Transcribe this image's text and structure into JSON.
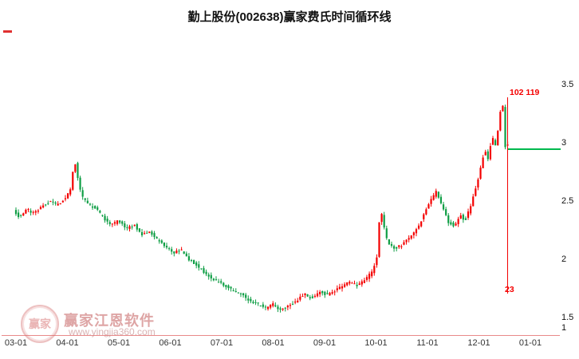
{
  "title": "勤上股份(002638)赢家费氏时间循环线",
  "watermark": {
    "brand": "赢家江恩软件",
    "url": "www.yingjia360.com",
    "logo_text": "赢家"
  },
  "annotations": {
    "top_label": "102 119",
    "bottom_label": "23",
    "current_price_line_color": "#00b94e",
    "cycle_line_color": "#f40000"
  },
  "chart_data": {
    "type": "candlestick",
    "title": "勤上股份(002638)赢家费氏时间循环线",
    "xlabel": "",
    "ylabel": "",
    "x_ticks": [
      "03-01",
      "04-01",
      "05-01",
      "06-01",
      "07-01",
      "08-01",
      "09-01",
      "10-01",
      "11-01",
      "12-01",
      "01-01"
    ],
    "y_ticks": [
      3.5,
      3,
      2.5,
      2,
      1.5,
      1
    ],
    "ylim": [
      1,
      3.5
    ],
    "grid": false,
    "legend": "none",
    "y_axis_side": "right",
    "up_color": "#f40000",
    "down_color": "#0f9e45",
    "last_price": 2.97,
    "candle_count": 200,
    "price_path": [
      [
        0.0,
        2.42
      ],
      [
        0.012,
        2.37
      ],
      [
        0.025,
        2.44
      ],
      [
        0.04,
        2.4
      ],
      [
        0.055,
        2.46
      ],
      [
        0.07,
        2.5
      ],
      [
        0.085,
        2.47
      ],
      [
        0.1,
        2.53
      ],
      [
        0.112,
        2.62
      ],
      [
        0.118,
        2.88
      ],
      [
        0.124,
        2.72
      ],
      [
        0.132,
        2.55
      ],
      [
        0.145,
        2.48
      ],
      [
        0.16,
        2.44
      ],
      [
        0.175,
        2.36
      ],
      [
        0.19,
        2.3
      ],
      [
        0.205,
        2.34
      ],
      [
        0.22,
        2.27
      ],
      [
        0.235,
        2.3
      ],
      [
        0.25,
        2.22
      ],
      [
        0.265,
        2.24
      ],
      [
        0.28,
        2.17
      ],
      [
        0.295,
        2.12
      ],
      [
        0.31,
        2.06
      ],
      [
        0.325,
        2.09
      ],
      [
        0.34,
        2.01
      ],
      [
        0.355,
        1.96
      ],
      [
        0.37,
        1.9
      ],
      [
        0.385,
        1.84
      ],
      [
        0.4,
        1.81
      ],
      [
        0.415,
        1.77
      ],
      [
        0.43,
        1.73
      ],
      [
        0.445,
        1.7
      ],
      [
        0.46,
        1.65
      ],
      [
        0.475,
        1.62
      ],
      [
        0.49,
        1.59
      ],
      [
        0.505,
        1.62
      ],
      [
        0.52,
        1.57
      ],
      [
        0.535,
        1.61
      ],
      [
        0.55,
        1.65
      ],
      [
        0.565,
        1.71
      ],
      [
        0.58,
        1.67
      ],
      [
        0.595,
        1.73
      ],
      [
        0.61,
        1.7
      ],
      [
        0.625,
        1.74
      ],
      [
        0.64,
        1.78
      ],
      [
        0.655,
        1.81
      ],
      [
        0.67,
        1.78
      ],
      [
        0.685,
        1.84
      ],
      [
        0.698,
        1.9
      ],
      [
        0.706,
        2.02
      ],
      [
        0.713,
        2.46
      ],
      [
        0.72,
        2.28
      ],
      [
        0.728,
        2.14
      ],
      [
        0.74,
        2.1
      ],
      [
        0.755,
        2.13
      ],
      [
        0.77,
        2.19
      ],
      [
        0.785,
        2.27
      ],
      [
        0.8,
        2.41
      ],
      [
        0.812,
        2.52
      ],
      [
        0.822,
        2.59
      ],
      [
        0.833,
        2.46
      ],
      [
        0.845,
        2.33
      ],
      [
        0.857,
        2.29
      ],
      [
        0.868,
        2.39
      ],
      [
        0.878,
        2.34
      ],
      [
        0.888,
        2.46
      ],
      [
        0.898,
        2.61
      ],
      [
        0.908,
        2.79
      ],
      [
        0.916,
        2.96
      ],
      [
        0.923,
        2.86
      ],
      [
        0.93,
        3.06
      ],
      [
        0.937,
        2.99
      ],
      [
        0.944,
        3.18
      ],
      [
        0.95,
        3.4
      ],
      [
        0.956,
        2.98
      ]
    ]
  }
}
